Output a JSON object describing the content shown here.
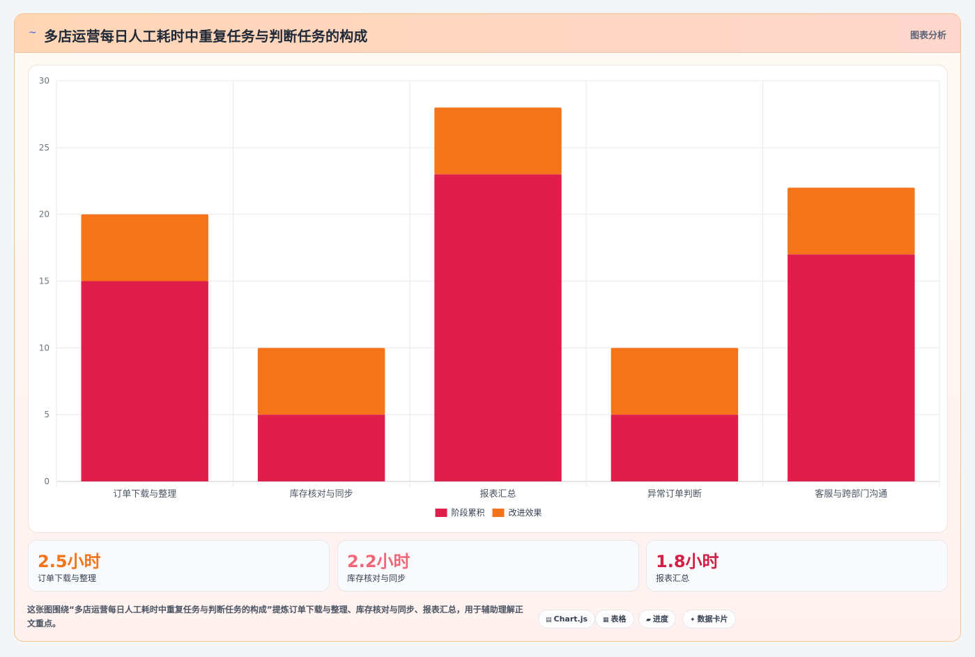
{
  "header": {
    "logo_icon": "~",
    "title": "多店运营每日人工耗时中重复任务与判断任务的构成",
    "tag": "图表分析"
  },
  "colors": {
    "series1": "#e01e4b",
    "series2": "#f67419",
    "stat1": "#f67419",
    "stat2": "#f2667a",
    "stat3": "#d11f45"
  },
  "chart_data": {
    "type": "bar",
    "stacked": true,
    "categories": [
      "订单下载与整理",
      "库存核对与同步",
      "报表汇总",
      "异常订单判断",
      "客服与跨部门沟通"
    ],
    "series": [
      {
        "name": "阶段累积",
        "values": [
          15,
          5,
          23,
          5,
          17
        ]
      },
      {
        "name": "改进效果",
        "values": [
          5,
          5,
          5,
          5,
          5
        ]
      }
    ],
    "ylim": [
      0,
      30
    ],
    "yticks": [
      0,
      5,
      10,
      15,
      20,
      25,
      30
    ],
    "grid": true,
    "legend": "bottom"
  },
  "stats": [
    {
      "value": "2.5小时",
      "label": "订单下载与整理"
    },
    {
      "value": "2.2小时",
      "label": "库存核对与同步"
    },
    {
      "value": "1.8小时",
      "label": "报表汇总"
    }
  ],
  "caption": "这张图围绕“多店运营每日人工耗时中重复任务与判断任务的构成”提炼订单下载与整理、库存核对与同步、报表汇总，用于辅助理解正文重点。",
  "pills": [
    {
      "icon": "▤",
      "label": "Chart.js"
    },
    {
      "icon": "▦",
      "label": "表格"
    },
    {
      "icon": "▰",
      "label": "进度"
    },
    {
      "icon": "✦",
      "label": "数据卡片"
    }
  ]
}
